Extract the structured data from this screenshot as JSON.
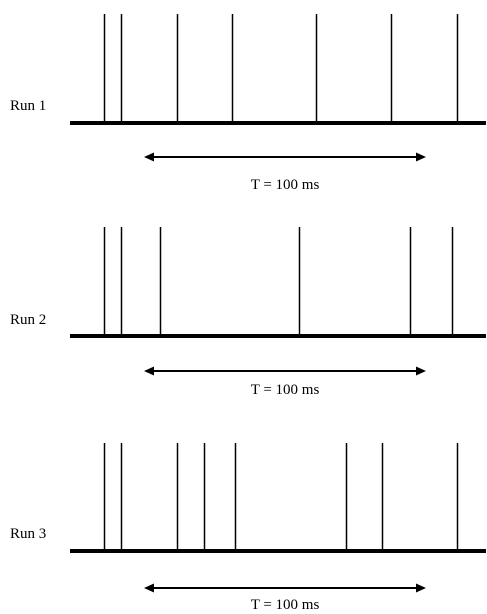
{
  "runs": [
    {
      "label": "Run 1",
      "window_label": "T = 100 ms",
      "spike_times_ms": [
        -15,
        -9,
        11,
        31,
        61,
        88,
        112
      ]
    },
    {
      "label": "Run 2",
      "window_label": "T = 100 ms",
      "spike_times_ms": [
        -15,
        -9,
        5,
        55,
        95,
        110
      ]
    },
    {
      "label": "Run 3",
      "window_label": "T = 100 ms",
      "spike_times_ms": [
        -15,
        -9,
        11,
        21,
        32,
        72,
        85,
        112
      ]
    }
  ],
  "window": {
    "start_ms": 0,
    "end_ms": 100
  },
  "colors": {
    "ink": "#000000",
    "background": "#ffffff"
  }
}
